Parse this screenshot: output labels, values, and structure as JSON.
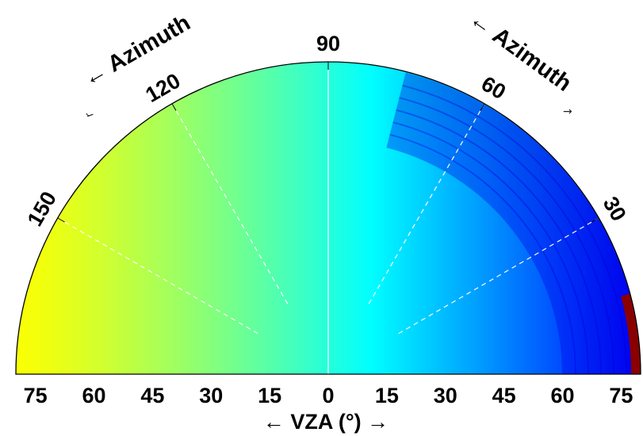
{
  "chart_data": {
    "type": "heatmap",
    "subtype": "polar-half-disc",
    "title": "",
    "xlabel": "←  VZA (°) →",
    "x_ticks": [
      "75",
      "60",
      "45",
      "30",
      "15",
      "0",
      "15",
      "30",
      "45",
      "60",
      "75"
    ],
    "vza_max": 80,
    "azimuth_ticks": [
      {
        "value": 30,
        "label": "30"
      },
      {
        "value": 60,
        "label": "60"
      },
      {
        "value": 90,
        "label": "90"
      },
      {
        "value": 120,
        "label": "120"
      },
      {
        "value": 150,
        "label": "150"
      }
    ],
    "azimuth_titles": {
      "left": "← Azimuth",
      "right": "← Azimuth"
    },
    "gridlines": "dashed white spokes at azimuths 30-150",
    "colormap": "jet",
    "colormap_stops": [
      "#00008f",
      "#0000ff",
      "#0080ff",
      "#00ffff",
      "#80ff80",
      "#ffff00",
      "#ff8000",
      "#ff0000",
      "#800000"
    ],
    "field": {
      "description": "value increases from right (dark blue) to left (yellow-green); dark red band at far right edge",
      "right_edge_value": 0.12,
      "left_edge_value": 0.62,
      "highlight_value": 0.99
    },
    "legend": "none",
    "grid": true
  }
}
